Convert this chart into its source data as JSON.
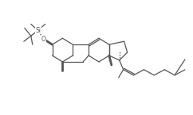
{
  "bg_color": "#ffffff",
  "line_color": "#555555",
  "text_color": "#555555",
  "figsize": [
    2.42,
    1.45
  ],
  "dpi": 100,
  "lw": 0.9
}
